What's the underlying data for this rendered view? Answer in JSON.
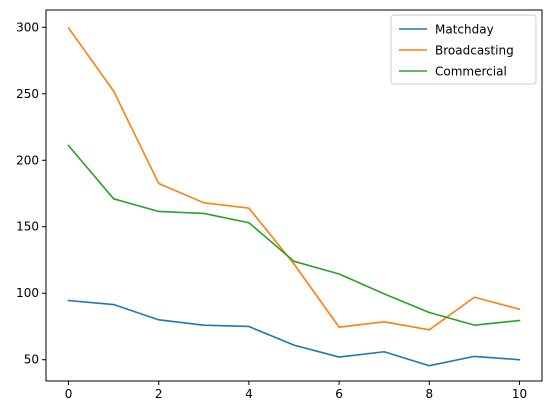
{
  "chart_data": {
    "type": "line",
    "title": "",
    "xlabel": "",
    "ylabel": "",
    "x": [
      0,
      1,
      2,
      3,
      4,
      5,
      6,
      7,
      8,
      9,
      10
    ],
    "xlim": [
      -0.5,
      10.5
    ],
    "ylim": [
      34,
      313
    ],
    "xticks": [
      0,
      2,
      4,
      6,
      8,
      10
    ],
    "yticks": [
      50,
      100,
      150,
      200,
      250,
      300
    ],
    "grid": false,
    "legend_position": "top-right",
    "series": [
      {
        "name": "Matchday",
        "color": "#1f77b4",
        "values": [
          94.5,
          91.5,
          80,
          76,
          75,
          61,
          52,
          56,
          45.5,
          52.5,
          50
        ]
      },
      {
        "name": "Broadcasting",
        "color": "#ff7f0e",
        "values": [
          299.5,
          252,
          182.5,
          168,
          164,
          122,
          74.5,
          78.5,
          72.5,
          97,
          88
        ]
      },
      {
        "name": "Commercial",
        "color": "#2ca02c",
        "values": [
          211,
          171,
          161.5,
          160,
          153,
          124,
          114.5,
          99.5,
          85.5,
          76,
          79.5
        ]
      }
    ]
  }
}
